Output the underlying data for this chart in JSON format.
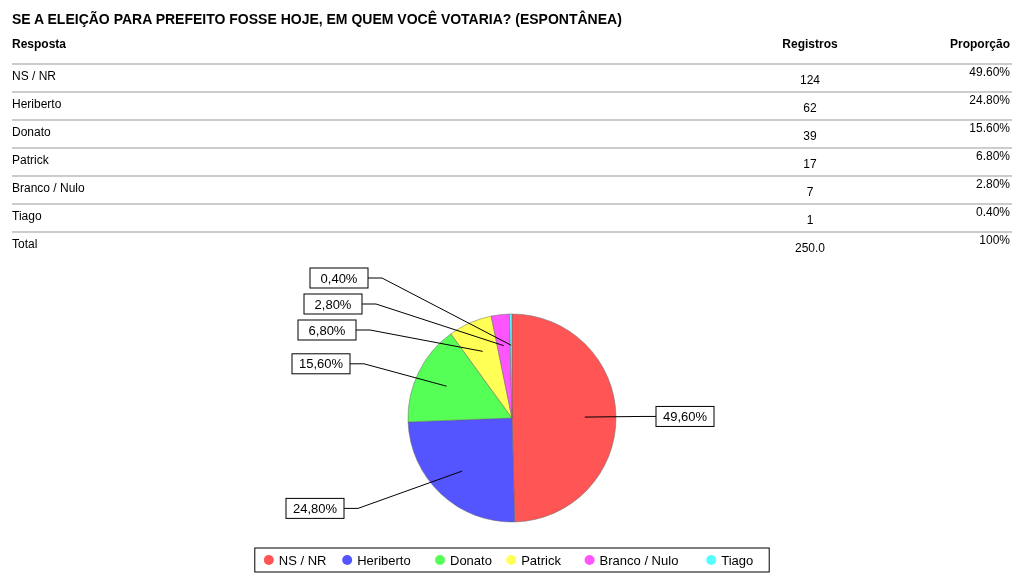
{
  "chart_data": {
    "type": "pie",
    "title": "SE A ELEIÇÃO PARA PREFEITO FOSSE HOJE, EM QUEM VOCÊ VOTARIA? (ESPONTÂNEA)",
    "categories": [
      "NS / NR",
      "Heriberto",
      "Donato",
      "Patrick",
      "Branco / Nulo",
      "Tiago"
    ],
    "values": [
      49.6,
      24.8,
      15.6,
      6.8,
      2.8,
      0.4
    ],
    "colors": [
      "#ff5555",
      "#5555ff",
      "#55ff55",
      "#ffff55",
      "#ff55ff",
      "#55ffff"
    ],
    "value_labels": [
      "49,60%",
      "24,80%",
      "15,60%",
      "6,80%",
      "2,80%",
      "0,40%"
    ],
    "annotations": [
      "Resposta",
      "Registros",
      "Proporção",
      "124",
      "62",
      "39",
      "17",
      "7",
      "1",
      "49.60%",
      "24.80%",
      "15.60%",
      "6.80%",
      "2.80%",
      "0.40%",
      "Total",
      "250.0",
      "100%"
    ],
    "legend": "bottom"
  }
}
